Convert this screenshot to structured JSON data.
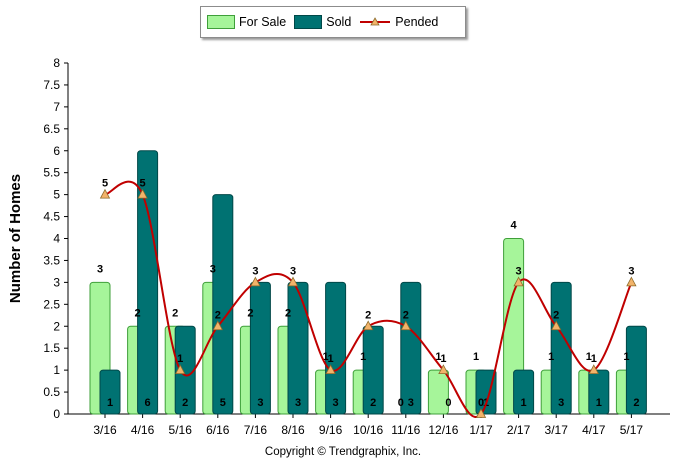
{
  "legend": {
    "for_sale": "For Sale",
    "sold": "Sold",
    "pended": "Pended"
  },
  "colors": {
    "for_sale": "#a6f59a",
    "for_sale_edge": "#3f9f3a",
    "sold": "#007272",
    "sold_edge": "#004848",
    "pended_line": "#c00000",
    "pended_marker": "#f2b36a"
  },
  "footer": "Copyright © Trendgraphix, Inc.",
  "chart_data": {
    "type": "bar",
    "ylabel": "Number of Homes",
    "xlabel": "",
    "ylim": [
      0,
      8
    ],
    "ytick_step": 0.5,
    "grid": false,
    "legend_position": "top-center",
    "categories": [
      "3/16",
      "4/16",
      "5/16",
      "6/16",
      "7/16",
      "8/16",
      "9/16",
      "10/16",
      "11/16",
      "12/16",
      "1/17",
      "2/17",
      "3/17",
      "4/17",
      "5/17"
    ],
    "series": [
      {
        "name": "For Sale",
        "kind": "bar",
        "values": [
          3,
          2,
          2,
          3,
          2,
          2,
          1,
          1,
          0,
          1,
          1,
          4,
          1,
          1,
          1
        ]
      },
      {
        "name": "Sold",
        "kind": "bar",
        "values": [
          1,
          6,
          2,
          5,
          3,
          3,
          3,
          2,
          3,
          0,
          1,
          1,
          3,
          1,
          2
        ]
      },
      {
        "name": "Pended",
        "kind": "line",
        "values": [
          5,
          5,
          1,
          2,
          3,
          3,
          1,
          2,
          2,
          1,
          0,
          3,
          2,
          1,
          3
        ]
      }
    ]
  }
}
